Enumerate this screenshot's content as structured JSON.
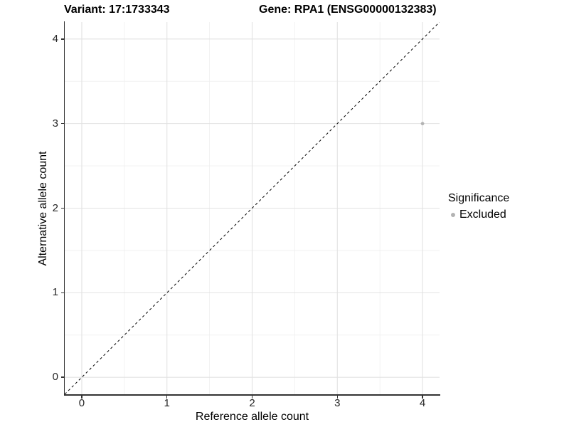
{
  "figure": {
    "title_left": "Variant: 17:1733343",
    "title_right": "Gene: RPA1 (ENSG00000132383)"
  },
  "axes": {
    "x_label": "Reference allele count",
    "y_label": "Alternative allele count",
    "x_tick_labels": [
      "0",
      "1",
      "2",
      "3",
      "4"
    ],
    "y_tick_labels": [
      "0",
      "1",
      "2",
      "3",
      "4"
    ]
  },
  "legend": {
    "title": "Significance",
    "items": [
      {
        "label": "Excluded",
        "color": "#b3b3b3"
      }
    ]
  },
  "colors": {
    "point": "#b3b3b3",
    "grid_major": "#e2e2e2",
    "grid_minor": "#efefef",
    "axis_line": "#333333",
    "reference_line": "#000000"
  },
  "chart_data": {
    "type": "scatter",
    "title": "Variant: 17:1733343    Gene: RPA1 (ENSG00000132383)",
    "xlabel": "Reference allele count",
    "ylabel": "Alternative allele count",
    "xlim": [
      -0.2,
      4.2
    ],
    "ylim": [
      -0.2,
      4.2
    ],
    "x_ticks": [
      0,
      1,
      2,
      3,
      4
    ],
    "y_ticks": [
      0,
      1,
      2,
      3,
      4
    ],
    "grid": "major-and-minor",
    "legend_position": "right",
    "series": [
      {
        "name": "Excluded",
        "color": "#b3b3b3",
        "points": [
          {
            "x": 4,
            "y": 3
          }
        ]
      }
    ],
    "reference_line": {
      "kind": "identity",
      "equation": "y = x",
      "style": "dashed",
      "color": "#000000"
    }
  }
}
